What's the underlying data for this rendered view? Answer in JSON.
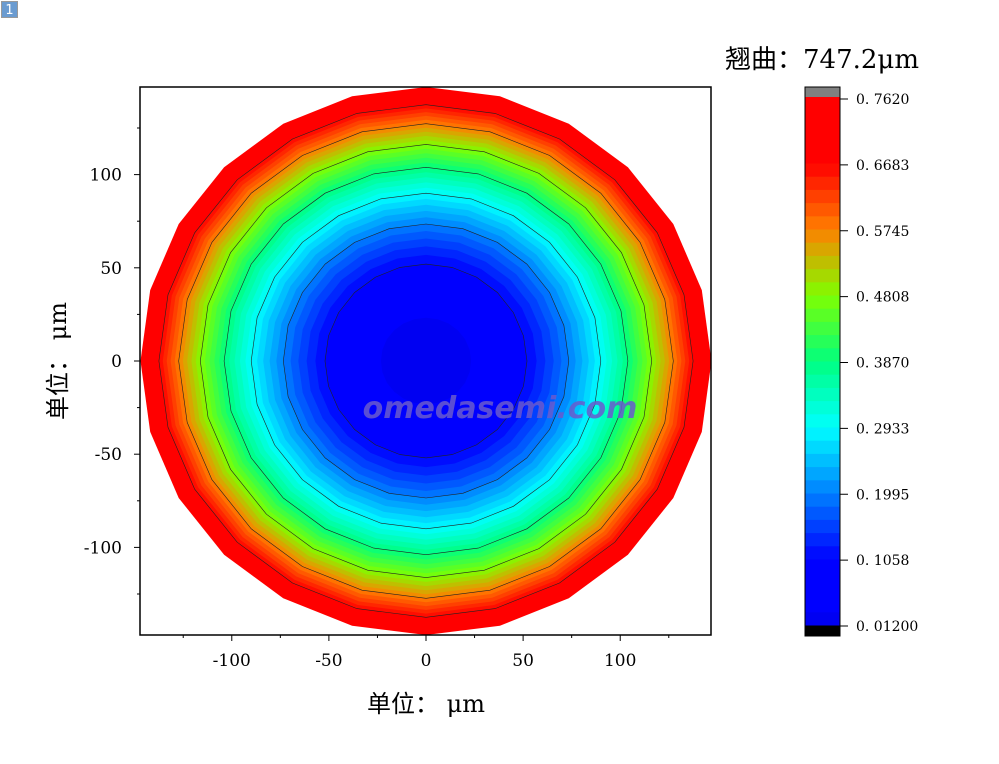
{
  "badge": "1",
  "chart_data": {
    "type": "contour",
    "title": "翘曲：747.2μm",
    "xlabel": "单位： μm",
    "ylabel": "单位： μm",
    "xlim": [
      -147,
      147
    ],
    "ylim": [
      -147,
      147
    ],
    "xticks": [
      -100,
      -50,
      0,
      50,
      100
    ],
    "yticks": [
      -100,
      -50,
      0,
      50,
      100
    ],
    "radius": 147,
    "center_value": 0.012,
    "edge_value": 0.762,
    "colorbar": {
      "min": 0.012,
      "max": 0.762,
      "ticks": [
        "0.01200",
        "0.1058",
        "0.1995",
        "0.2933",
        "0.3870",
        "0.4808",
        "0.5745",
        "0.6683",
        "0.7620"
      ]
    },
    "contour_levels": [
      0.1058,
      0.1995,
      0.2933,
      0.387,
      0.4808,
      0.5745,
      0.6683
    ],
    "watermark": "omedasemi.com"
  }
}
